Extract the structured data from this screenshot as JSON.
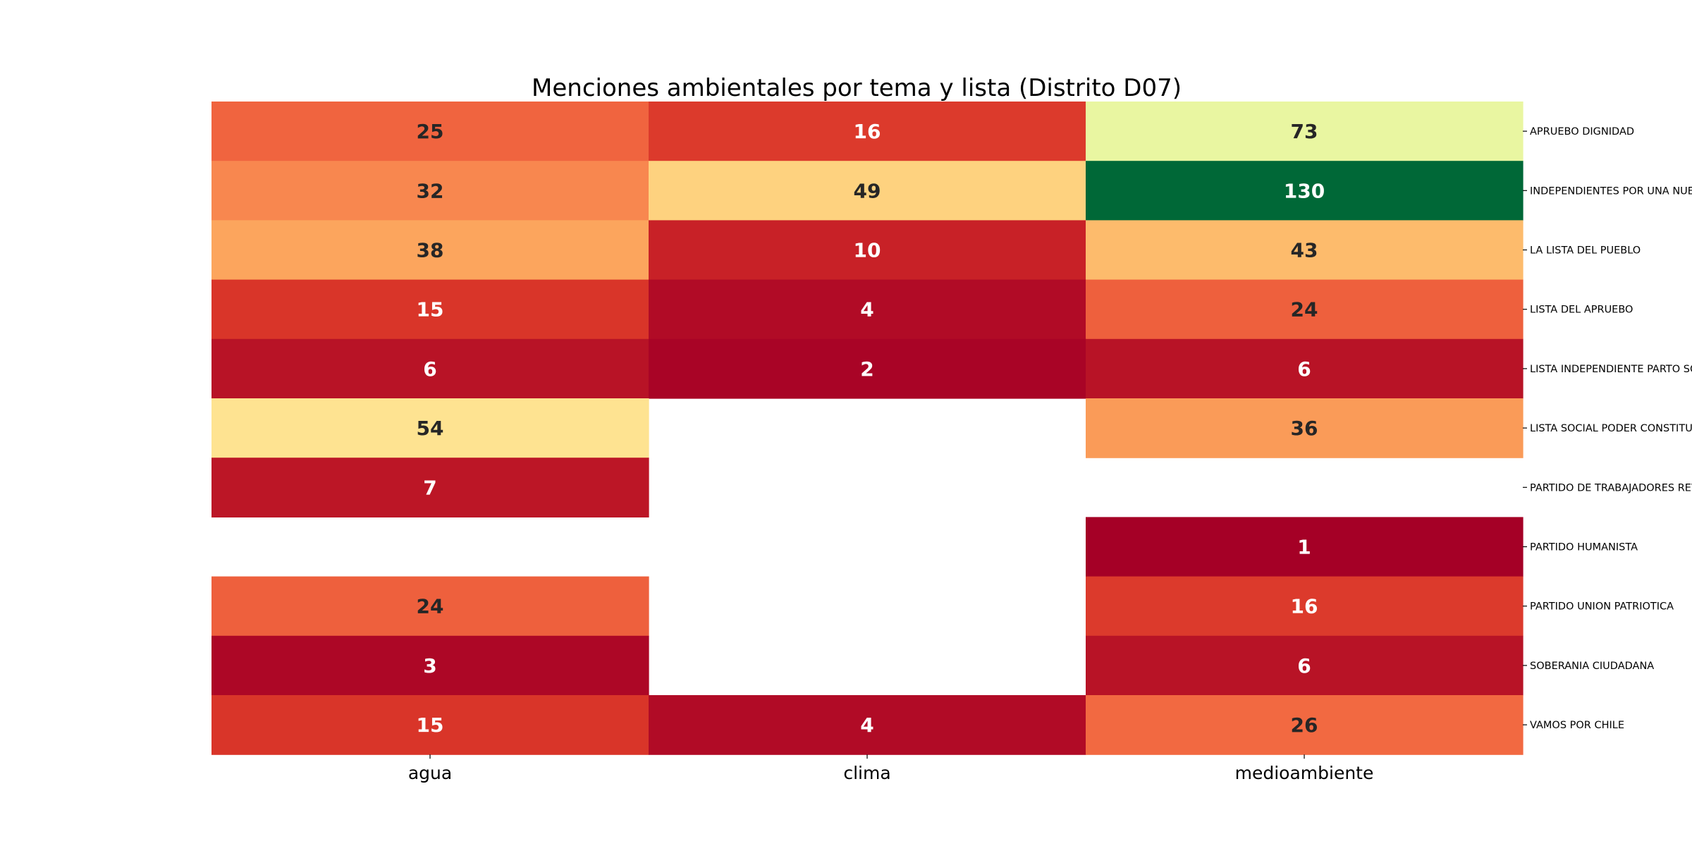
{
  "chart_data": {
    "type": "heatmap",
    "title": "Menciones ambientales por tema y lista (Distrito D07)",
    "xlabel": "",
    "ylabel": "",
    "columns": [
      "agua",
      "clima",
      "medioambiente"
    ],
    "rows": [
      "APRUEBO DIGNIDAD",
      "INDEPENDIENTES POR UNA NUEVA CONSTITUCION",
      "LA LISTA DEL PUEBLO",
      "LISTA DEL APRUEBO",
      "LISTA INDEPENDIENTE PARTO SOCIAL",
      "LISTA SOCIAL PODER CONSTITUYENTE",
      "PARTIDO DE TRABAJADORES REVOLUCIONARIOS",
      "PARTIDO HUMANISTA",
      "PARTIDO UNION PATRIOTICA",
      "SOBERANIA CIUDADANA",
      "VAMOS POR CHILE"
    ],
    "values": [
      [
        25,
        16,
        73
      ],
      [
        32,
        49,
        130
      ],
      [
        38,
        10,
        43
      ],
      [
        15,
        4,
        24
      ],
      [
        6,
        2,
        6
      ],
      [
        54,
        null,
        36
      ],
      [
        7,
        null,
        null
      ],
      [
        null,
        null,
        1
      ],
      [
        24,
        null,
        16
      ],
      [
        3,
        null,
        6
      ],
      [
        15,
        4,
        26
      ]
    ],
    "value_range": [
      1,
      130
    ],
    "colormap": "RdYlGn",
    "annotations": true,
    "y_tick_side": "right",
    "grid": false,
    "legend": "none"
  }
}
